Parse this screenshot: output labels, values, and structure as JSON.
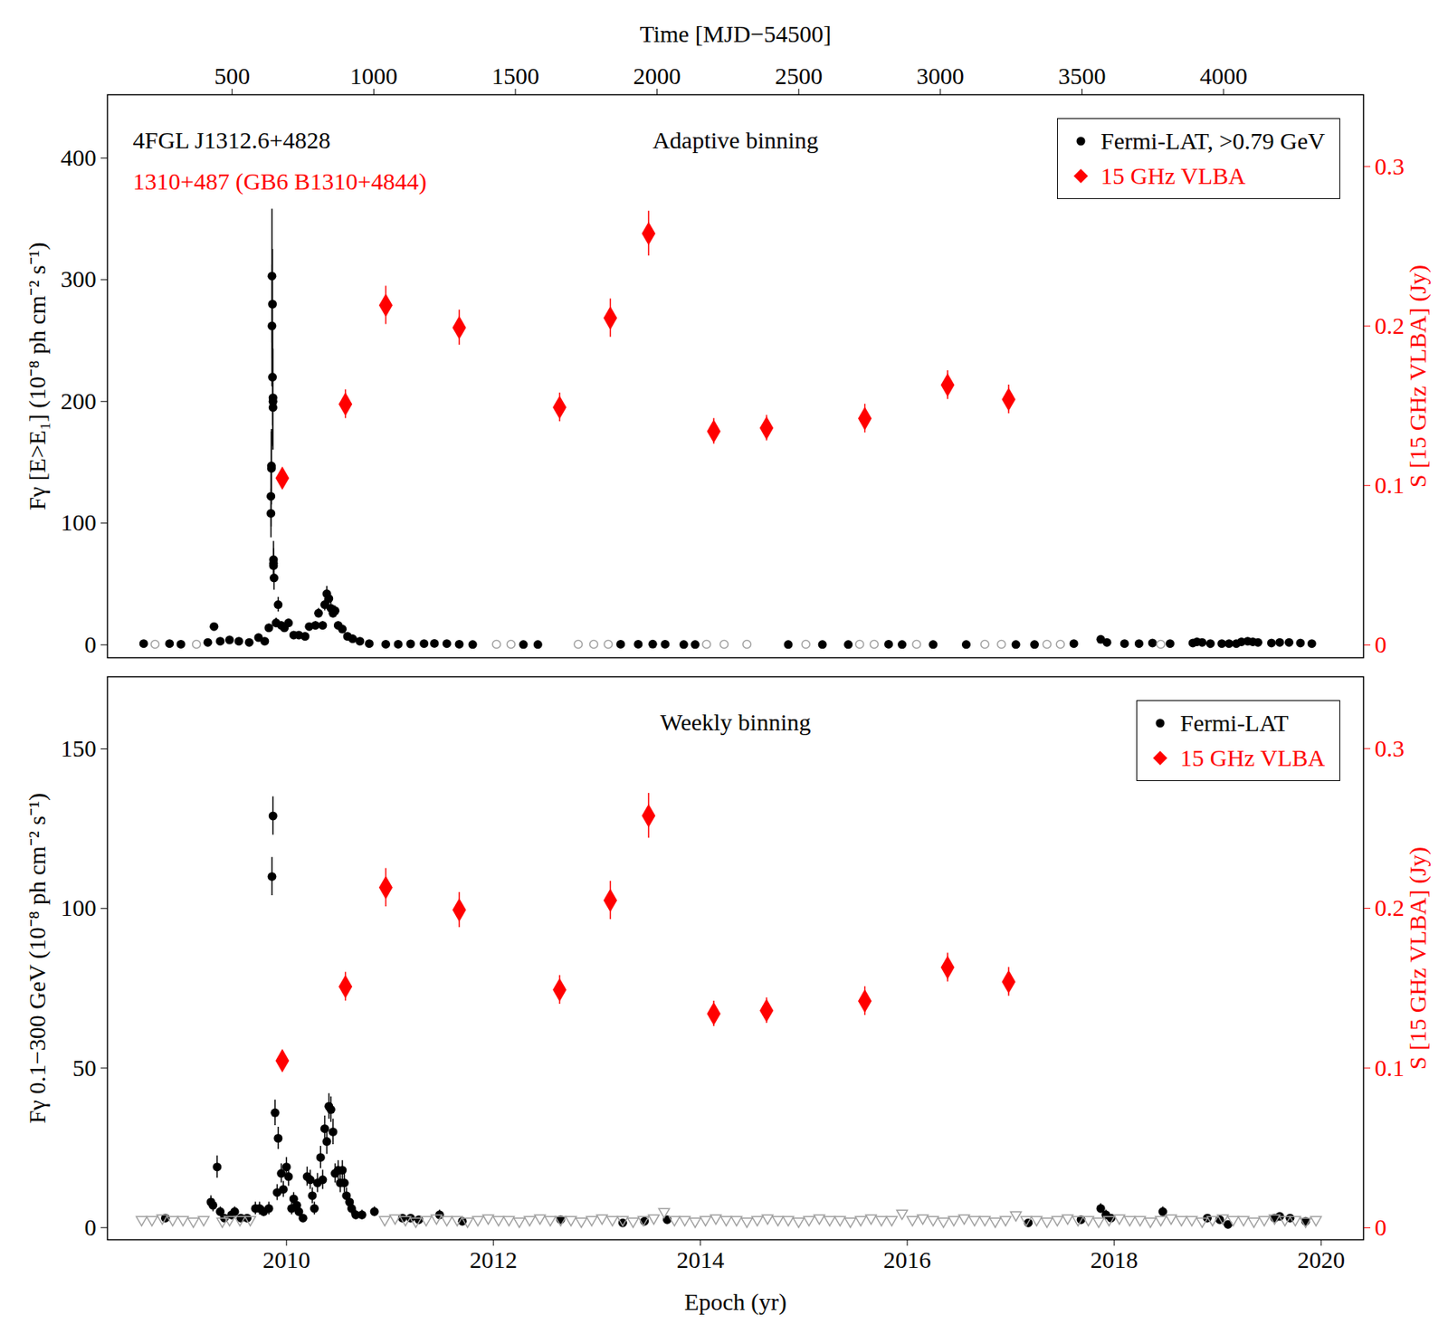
{
  "chart_data": [
    {
      "type": "scatter",
      "title": "Adaptive binning",
      "annotations": [
        {
          "text": "4FGL J1312.6+4828",
          "color": "#000000"
        },
        {
          "text": "1310+487 (GB6 B1310+4844)",
          "color": "#ff0000"
        }
      ],
      "x2_label": "Time [MJD−54500]",
      "y_label": "Fγ [E>E₁] (10⁻⁸ ph cm⁻² s⁻¹)",
      "y2_label": "S [15 GHz VLBA] (Jy)",
      "xlim": [
        2008.27,
        2020.41
      ],
      "x2ticks": [
        {
          "value": 2009.475,
          "label": "500"
        },
        {
          "value": 2010.844,
          "label": "1000"
        },
        {
          "value": 2012.213,
          "label": "1500"
        },
        {
          "value": 2013.582,
          "label": "2000"
        },
        {
          "value": 2014.951,
          "label": "2500"
        },
        {
          "value": 2016.32,
          "label": "3000"
        },
        {
          "value": 2017.689,
          "label": "3500"
        },
        {
          "value": 2019.057,
          "label": "4000"
        }
      ],
      "ylim": [
        -10.6,
        452
      ],
      "yticks": [
        0,
        100,
        200,
        300,
        400
      ],
      "y2lim": [
        -0.008,
        0.345
      ],
      "y2ticks": [
        0,
        0.1,
        0.2,
        0.3
      ],
      "legend": "top-right",
      "series": [
        {
          "name": "Fermi-LAT, >0.79 GeV",
          "color": "#000000",
          "marker": "circle",
          "x": [
            2008.62,
            2008.87,
            2008.98,
            2009.24,
            2009.3,
            2009.36,
            2009.45,
            2009.54,
            2009.64,
            2009.73,
            2009.79,
            2009.83,
            2009.85,
            2009.85,
            2009.855,
            2009.855,
            2009.86,
            2009.86,
            2009.865,
            2009.865,
            2009.87,
            2009.87,
            2009.87,
            2009.875,
            2009.875,
            2009.875,
            2009.88,
            2009.9,
            2009.92,
            2009.95,
            2009.98,
            2010.02,
            2010.07,
            2010.12,
            2010.18,
            2010.22,
            2010.28,
            2010.31,
            2010.35,
            2010.37,
            2010.39,
            2010.41,
            2010.43,
            2010.45,
            2010.47,
            2010.5,
            2010.54,
            2010.59,
            2010.64,
            2010.71,
            2010.8,
            2010.96,
            2011.08,
            2011.2,
            2011.33,
            2011.43,
            2011.55,
            2011.67,
            2011.8,
            2012.29,
            2012.43,
            2013.23,
            2013.4,
            2013.54,
            2013.66,
            2013.84,
            2013.95,
            2014.85,
            2015.18,
            2015.43,
            2015.82,
            2015.95,
            2016.25,
            2016.57,
            2017.05,
            2017.23,
            2017.61,
            2017.87,
            2017.93,
            2018.1,
            2018.24,
            2018.37,
            2018.54,
            2018.76,
            2018.8,
            2018.85,
            2018.93,
            2019.04,
            2019.11,
            2019.18,
            2019.23,
            2019.29,
            2019.34,
            2019.39,
            2019.52,
            2019.6,
            2019.69,
            2019.8,
            2019.91
          ],
          "values": [
            1,
            1,
            0.5,
            2,
            15,
            3,
            4,
            3,
            2,
            6,
            3,
            14,
            108,
            122,
            147,
            145,
            262,
            303,
            280,
            220,
            203,
            200,
            195,
            70,
            67,
            65,
            55,
            18,
            33,
            16,
            14,
            18,
            8,
            8,
            7,
            15,
            16,
            26,
            16,
            33,
            42,
            38,
            30,
            26,
            28,
            16,
            13,
            7,
            5,
            3,
            1,
            0.5,
            0.5,
            0.8,
            1,
            1.2,
            1,
            0.5,
            0.3,
            0.3,
            0.3,
            0.5,
            0.5,
            0.6,
            0.5,
            0.3,
            0.3,
            0.3,
            0.3,
            0.3,
            0.5,
            0.3,
            0.3,
            0.3,
            0.3,
            0.3,
            1,
            4.5,
            2,
            1,
            1,
            1.5,
            1,
            1.5,
            2.5,
            2,
            1,
            1,
            1,
            1,
            2.5,
            3,
            2.5,
            2,
            1.5,
            2,
            2,
            1.5,
            1
          ],
          "errors": [
            0.5,
            0.5,
            0.3,
            1,
            3,
            1,
            1,
            1,
            1,
            2,
            1,
            3,
            20,
            25,
            30,
            30,
            50,
            55,
            45,
            40,
            40,
            35,
            35,
            15,
            12,
            12,
            10,
            4,
            6,
            3,
            3,
            3,
            2,
            2,
            2,
            3,
            3,
            4,
            3,
            5,
            6,
            5,
            5,
            4,
            4,
            3,
            3,
            2,
            1,
            1,
            0.5,
            0.3,
            0.3,
            0.3,
            0.3,
            0.3,
            0.3,
            0.3,
            0.3,
            0.3,
            0.3,
            0.3,
            0.3,
            0.3,
            0.3,
            0.3,
            0.3,
            0.3,
            0.3,
            0.3,
            0.3,
            0.3,
            0.3,
            0.3,
            0.3,
            0.3,
            0.5,
            1.5,
            0.8,
            0.5,
            0.5,
            0.6,
            0.5,
            0.6,
            0.8,
            0.7,
            0.5,
            0.5,
            0.5,
            0.5,
            0.8,
            0.8,
            0.8,
            0.7,
            0.6,
            0.7,
            0.7,
            0.6,
            0.5
          ]
        },
        {
          "color": "#a0a0a0",
          "marker": "circle-open",
          "x": [
            2008.73,
            2009.13,
            2012.03,
            2012.17,
            2012.82,
            2012.97,
            2013.11,
            2014.06,
            2014.23,
            2014.45,
            2015.02,
            2015.54,
            2015.68,
            2016.09,
            2016.75,
            2016.91,
            2017.35,
            2017.48,
            2018.45
          ],
          "values": [
            0.5,
            0.5,
            0.5,
            0.5,
            0.5,
            0.5,
            0.5,
            0.5,
            0.5,
            0.5,
            0.5,
            0.5,
            0.5,
            0.5,
            0.5,
            0.5,
            0.5,
            0.5,
            0.5
          ]
        },
        {
          "name": "15 GHz VLBA",
          "color": "#ff0000",
          "marker": "diamond",
          "axis": "y2",
          "x": [
            2009.96,
            2010.57,
            2010.96,
            2011.67,
            2012.64,
            2013.13,
            2013.5,
            2014.13,
            2014.64,
            2015.59,
            2016.39,
            2016.98
          ],
          "values": [
            0.1046,
            0.151,
            0.213,
            0.199,
            0.149,
            0.205,
            0.258,
            0.134,
            0.136,
            0.142,
            0.163,
            0.154
          ],
          "errors": [
            0.006,
            0.009,
            0.012,
            0.011,
            0.009,
            0.012,
            0.014,
            0.008,
            0.008,
            0.009,
            0.009,
            0.009
          ]
        }
      ]
    },
    {
      "type": "scatter",
      "title": "Weekly binning",
      "x_label": "Epoch (yr)",
      "y_label": "Fγ 0.1−300 GeV (10⁻⁸ ph cm⁻² s⁻¹)",
      "y2_label": "S [15 GHz VLBA] (Jy)",
      "xlim": [
        2008.27,
        2020.41
      ],
      "xticks": [
        2010,
        2012,
        2014,
        2016,
        2018,
        2020
      ],
      "ylim": [
        -3.8,
        172.6
      ],
      "yticks": [
        0,
        50,
        100,
        150
      ],
      "y2lim": [
        -0.0075,
        0.345
      ],
      "y2ticks": [
        0,
        0.1,
        0.2,
        0.3
      ],
      "legend": "top-right",
      "series": [
        {
          "name": "Fermi-LAT",
          "color": "#000000",
          "marker": "circle",
          "x": [
            2008.83,
            2009.27,
            2009.29,
            2009.33,
            2009.36,
            2009.4,
            2009.47,
            2009.5,
            2009.56,
            2009.62,
            2009.7,
            2009.74,
            2009.78,
            2009.83,
            2009.86,
            2009.87,
            2009.89,
            2009.91,
            2009.92,
            2009.95,
            2009.97,
            2010.0,
            2010.02,
            2010.05,
            2010.07,
            2010.1,
            2010.12,
            2010.16,
            2010.2,
            2010.23,
            2010.25,
            2010.27,
            2010.3,
            2010.33,
            2010.35,
            2010.37,
            2010.39,
            2010.41,
            2010.43,
            2010.45,
            2010.47,
            2010.5,
            2010.52,
            2010.54,
            2010.56,
            2010.58,
            2010.61,
            2010.63,
            2010.67,
            2010.73,
            2010.85,
            2011.12,
            2011.2,
            2011.28,
            2011.48,
            2011.7,
            2012.65,
            2013.25,
            2013.46,
            2013.68,
            2017.17,
            2017.68,
            2017.87,
            2017.92,
            2017.97,
            2018.47,
            2018.9,
            2019.02,
            2019.1,
            2019.55,
            2019.6,
            2019.7,
            2019.85
          ],
          "values": [
            3,
            8,
            7,
            19,
            5,
            3,
            4,
            5,
            3,
            3,
            6,
            6,
            5,
            6,
            110,
            129,
            36,
            11,
            28,
            17,
            12,
            19,
            16,
            6,
            9,
            7,
            5,
            3,
            16,
            15,
            10,
            6,
            14,
            22,
            15,
            31,
            27,
            38,
            37,
            30,
            17,
            18,
            14,
            18,
            14,
            10,
            8,
            6,
            4,
            4,
            5,
            3,
            3,
            2.5,
            4,
            2,
            2.5,
            1.5,
            2,
            2.5,
            1.5,
            2.5,
            6,
            4,
            3,
            5,
            3,
            2.5,
            1,
            3,
            3.5,
            3,
            2
          ],
          "errors": [
            1,
            2,
            2,
            3.5,
            1.5,
            1,
            1.5,
            1.5,
            1,
            1,
            2,
            2,
            1.5,
            2,
            6,
            6,
            4,
            2.5,
            3.5,
            3,
            2.5,
            3,
            3,
            2,
            2,
            2,
            1.5,
            1,
            3,
            3,
            2.5,
            2,
            3,
            3.5,
            3,
            4,
            4,
            4,
            4,
            4,
            3,
            3,
            3,
            3,
            3,
            2.5,
            2,
            2,
            1.5,
            1.5,
            1.5,
            1,
            1,
            1,
            1.5,
            1,
            1,
            0.8,
            1,
            1,
            0.8,
            1,
            1.5,
            1.5,
            1,
            1.5,
            1,
            1,
            0.5,
            1,
            1,
            1,
            1
          ]
        },
        {
          "color": "#a0a0a0",
          "marker": "triangle-down",
          "x": [
            2008.6,
            2008.7,
            2008.8,
            2008.9,
            2009.0,
            2009.1,
            2009.2,
            2009.38,
            2009.45,
            2009.55,
            2009.65,
            2010.95,
            2011.05,
            2011.15,
            2011.25,
            2011.35,
            2011.45,
            2011.55,
            2011.65,
            2011.75,
            2011.85,
            2011.95,
            2012.05,
            2012.15,
            2012.25,
            2012.35,
            2012.45,
            2012.55,
            2012.65,
            2012.75,
            2012.85,
            2012.95,
            2013.05,
            2013.15,
            2013.25,
            2013.35,
            2013.45,
            2013.55,
            2013.65,
            2013.75,
            2013.85,
            2013.95,
            2014.05,
            2014.15,
            2014.25,
            2014.35,
            2014.45,
            2014.55,
            2014.65,
            2014.75,
            2014.85,
            2014.95,
            2015.05,
            2015.15,
            2015.25,
            2015.35,
            2015.45,
            2015.55,
            2015.65,
            2015.75,
            2015.85,
            2015.95,
            2016.05,
            2016.15,
            2016.25,
            2016.35,
            2016.45,
            2016.55,
            2016.65,
            2016.75,
            2016.85,
            2016.95,
            2017.05,
            2017.15,
            2017.25,
            2017.35,
            2017.45,
            2017.55,
            2017.65,
            2017.75,
            2017.85,
            2017.95,
            2018.05,
            2018.15,
            2018.25,
            2018.35,
            2018.45,
            2018.55,
            2018.65,
            2018.75,
            2018.85,
            2018.95,
            2019.05,
            2019.15,
            2019.25,
            2019.35,
            2019.45,
            2019.55,
            2019.65,
            2019.75,
            2019.85,
            2019.95
          ],
          "values": [
            2.5,
            2.5,
            3,
            2.5,
            2.5,
            2,
            2.5,
            2,
            2.5,
            2.5,
            2.5,
            2.5,
            3,
            2.5,
            2,
            2.5,
            3,
            2.5,
            2.5,
            2,
            2.5,
            3,
            2.5,
            2.5,
            2,
            2.5,
            3,
            2.5,
            2.5,
            2.5,
            2,
            2.5,
            3,
            2.5,
            2.5,
            2,
            2.5,
            3,
            5,
            2.5,
            2.5,
            2,
            2.5,
            3,
            2.5,
            2.5,
            2,
            2.5,
            3,
            2.5,
            2.5,
            2,
            2.5,
            3,
            2.5,
            2.5,
            2,
            2.5,
            3,
            2.5,
            2.5,
            4.5,
            2.5,
            3,
            2.5,
            2,
            2.5,
            3,
            2.5,
            2.5,
            2,
            2.5,
            4,
            2.5,
            2.5,
            2,
            2.5,
            3,
            2.5,
            2.5,
            2,
            2.5,
            3,
            2.5,
            2.5,
            2,
            2.5,
            3,
            2.5,
            2.5,
            2,
            2.5,
            3,
            2.5,
            2.5,
            2,
            2.5,
            3,
            2.5,
            2.5,
            2,
            2.5
          ]
        },
        {
          "name": "15 GHz VLBA",
          "color": "#ff0000",
          "marker": "diamond",
          "axis": "y2",
          "x": [
            2009.96,
            2010.57,
            2010.96,
            2011.67,
            2012.64,
            2013.13,
            2013.5,
            2014.13,
            2014.64,
            2015.59,
            2016.39,
            2016.98
          ],
          "values": [
            0.1046,
            0.151,
            0.213,
            0.199,
            0.149,
            0.205,
            0.258,
            0.134,
            0.136,
            0.142,
            0.163,
            0.154
          ],
          "errors": [
            0.006,
            0.009,
            0.012,
            0.011,
            0.009,
            0.012,
            0.014,
            0.008,
            0.008,
            0.009,
            0.009,
            0.009
          ]
        }
      ]
    }
  ]
}
